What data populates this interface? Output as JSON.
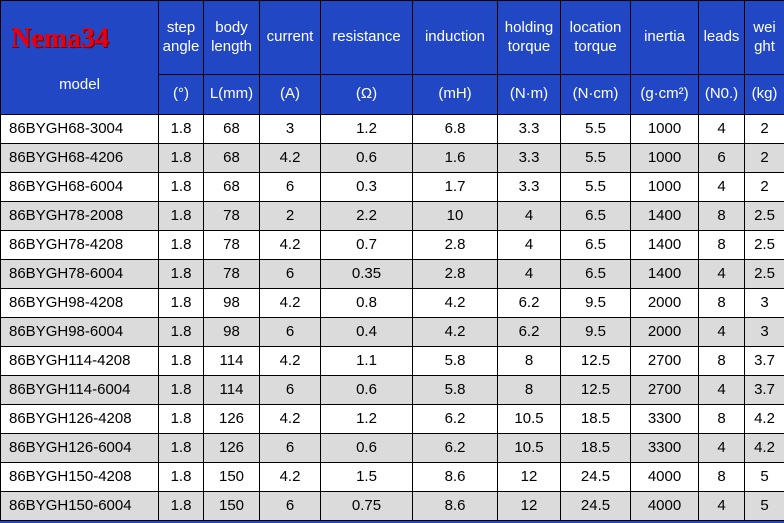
{
  "brand": "Nema34",
  "model_label": "model",
  "table": {
    "headers": [
      "step\nangle",
      "body\nlength",
      "current",
      "resistance",
      "induction",
      "holding\ntorque",
      "location\ntorque",
      "inertia",
      "leads",
      "wei\nght"
    ],
    "units": [
      "(°)",
      "L(mm)",
      "(A)",
      "(Ω)",
      "(mH)",
      "(N·m)",
      "(N·cm)",
      "(g·cm²)",
      "(N0.)",
      "(kg)"
    ],
    "rows": [
      [
        "86BYGH68-3004",
        "1.8",
        "68",
        "3",
        "1.2",
        "6.8",
        "3.3",
        "5.5",
        "1000",
        "4",
        "2"
      ],
      [
        "86BYGH68-4206",
        "1.8",
        "68",
        "4.2",
        "0.6",
        "1.6",
        "3.3",
        "5.5",
        "1000",
        "6",
        "2"
      ],
      [
        "86BYGH68-6004",
        "1.8",
        "68",
        "6",
        "0.3",
        "1.7",
        "3.3",
        "5.5",
        "1000",
        "4",
        "2"
      ],
      [
        "86BYGH78-2008",
        "1.8",
        "78",
        "2",
        "2.2",
        "10",
        "4",
        "6.5",
        "1400",
        "8",
        "2.5"
      ],
      [
        "86BYGH78-4208",
        "1.8",
        "78",
        "4.2",
        "0.7",
        "2.8",
        "4",
        "6.5",
        "1400",
        "8",
        "2.5"
      ],
      [
        "86BYGH78-6004",
        "1.8",
        "78",
        "6",
        "0.35",
        "2.8",
        "4",
        "6.5",
        "1400",
        "4",
        "2.5"
      ],
      [
        "86BYGH98-4208",
        "1.8",
        "98",
        "4.2",
        "0.8",
        "4.2",
        "6.2",
        "9.5",
        "2000",
        "8",
        "3"
      ],
      [
        "86BYGH98-6004",
        "1.8",
        "98",
        "6",
        "0.4",
        "4.2",
        "6.2",
        "9.5",
        "2000",
        "4",
        "3"
      ],
      [
        "86BYGH114-4208",
        "1.8",
        "114",
        "4.2",
        "1.1",
        "5.8",
        "8",
        "12.5",
        "2700",
        "8",
        "3.7"
      ],
      [
        "86BYGH114-6004",
        "1.8",
        "114",
        "6",
        "0.6",
        "5.8",
        "8",
        "12.5",
        "2700",
        "4",
        "3.7"
      ],
      [
        "86BYGH126-4208",
        "1.8",
        "126",
        "4.2",
        "1.2",
        "6.2",
        "10.5",
        "18.5",
        "3300",
        "8",
        "4.2"
      ],
      [
        "86BYGH126-6004",
        "1.8",
        "126",
        "6",
        "0.6",
        "6.2",
        "10.5",
        "18.5",
        "3300",
        "4",
        "4.2"
      ],
      [
        "86BYGH150-4208",
        "1.8",
        "150",
        "4.2",
        "1.5",
        "8.6",
        "12",
        "24.5",
        "4000",
        "8",
        "5"
      ],
      [
        "86BYGH150-6004",
        "1.8",
        "150",
        "6",
        "0.75",
        "8.6",
        "12",
        "24.5",
        "4000",
        "4",
        "5"
      ]
    ]
  },
  "colors": {
    "header_bg": "#2147c5",
    "brand_red": "#e60010",
    "row_alt": "#dbdbdb",
    "border": "#000000"
  }
}
